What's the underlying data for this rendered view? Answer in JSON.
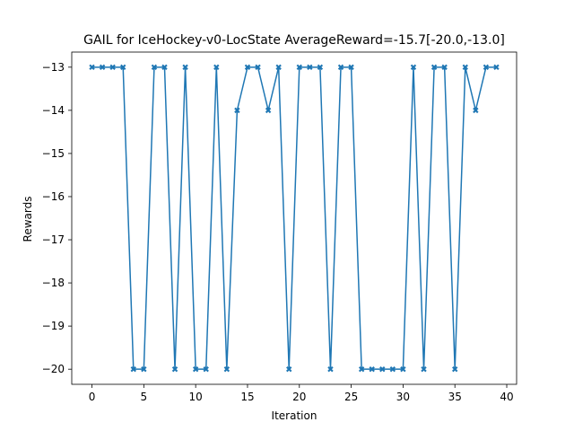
{
  "chart_data": {
    "type": "line",
    "title": "GAIL for IceHockey-v0-LocState AverageReward=-15.7[-20.0,-13.0]",
    "xlabel": "Iteration",
    "ylabel": "Rewards",
    "xlim": [
      -1.95,
      40.95
    ],
    "ylim": [
      -20.35,
      -12.65
    ],
    "xticks": [
      0,
      5,
      10,
      15,
      20,
      25,
      30,
      35,
      40
    ],
    "xtick_labels": [
      "0",
      "5",
      "10",
      "15",
      "20",
      "25",
      "30",
      "35",
      "40"
    ],
    "yticks": [
      -13,
      -14,
      -15,
      -16,
      -17,
      -18,
      -19,
      -20
    ],
    "ytick_labels": [
      "−13",
      "−14",
      "−15",
      "−16",
      "−17",
      "−18",
      "−19",
      "−20"
    ],
    "grid": false,
    "marker": "X",
    "series": [
      {
        "color": "#1f77b4",
        "x": [
          0,
          1,
          2,
          3,
          4,
          5,
          6,
          7,
          8,
          9,
          10,
          11,
          12,
          13,
          14,
          15,
          16,
          17,
          18,
          19,
          20,
          21,
          22,
          23,
          24,
          25,
          26,
          27,
          28,
          29,
          30,
          31,
          32,
          33,
          34,
          35,
          36,
          37,
          38,
          39
        ],
        "values": [
          -13,
          -13,
          -13,
          -13,
          -20,
          -20,
          -13,
          -13,
          -20,
          -13,
          -20,
          -20,
          -13,
          -20,
          -14,
          -13,
          -13,
          -14,
          -13,
          -20,
          -13,
          -13,
          -13,
          -20,
          -13,
          -13,
          -20,
          -20,
          -20,
          -20,
          -20,
          -13,
          -20,
          -13,
          -13,
          -20,
          -13,
          -14,
          -13,
          -13
        ]
      }
    ]
  }
}
